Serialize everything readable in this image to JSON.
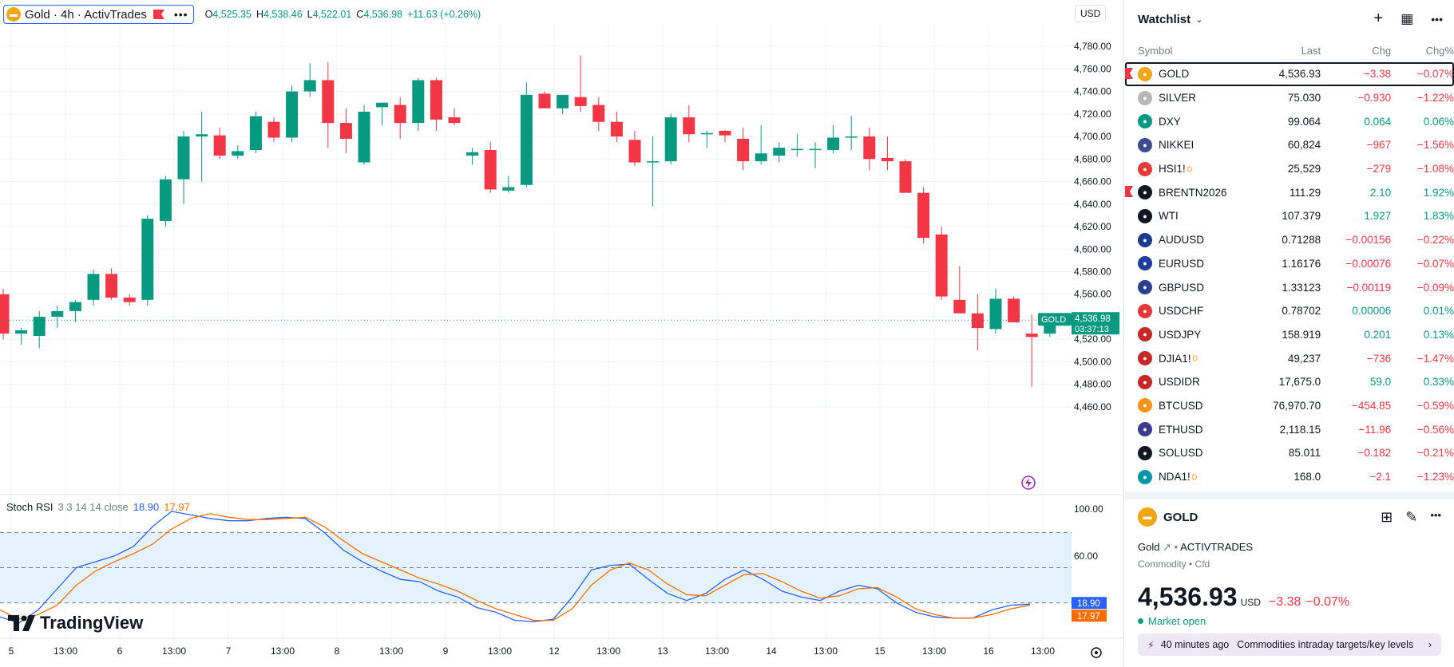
{
  "legend": {
    "symbol_title": "Gold · 4h · ActivTrades",
    "icon": "gold-bars-icon",
    "ohlc": [
      {
        "label": "O",
        "value": "4,525.35"
      },
      {
        "label": "H",
        "value": "4,538.46"
      },
      {
        "label": "L",
        "value": "4,522.01"
      },
      {
        "label": "C",
        "value": "4,536.98"
      }
    ],
    "change": "+11.63 (+0.26%)"
  },
  "currency_button": "USD",
  "price_axis": {
    "labels": [
      "4,780.00",
      "4,760.00",
      "4,740.00",
      "4,720.00",
      "4,700.00",
      "4,680.00",
      "4,660.00",
      "4,640.00",
      "4,620.00",
      "4,600.00",
      "4,580.00",
      "4,560.00",
      "4,540.00",
      "4,520.00",
      "4,500.00",
      "4,480.00",
      "4,460.00"
    ],
    "last_price_tag": {
      "symbol": "GOLD",
      "price": "4,536.98",
      "countdown": "03:37:13"
    }
  },
  "time_axis": [
    "5",
    "13:00",
    "6",
    "13:00",
    "7",
    "13:00",
    "8",
    "13:00",
    "9",
    "13:00",
    "12",
    "13:00",
    "13",
    "13:00",
    "14",
    "13:00",
    "15",
    "13:00",
    "16",
    "13:00"
  ],
  "stoch_rsi": {
    "name": "Stoch RSI",
    "params": "3 3 14 14 close",
    "k_value": "18.90",
    "d_value": "17.97",
    "axis_labels": [
      "100.00",
      "60.00"
    ]
  },
  "brand": "TradingView",
  "chart_data": {
    "type": "candlestick",
    "interval": "4h",
    "ylim": [
      4455,
      4790
    ],
    "candles": [
      {
        "o": 4560,
        "h": 4565,
        "l": 4520,
        "c": 4525
      },
      {
        "o": 4525,
        "h": 4530,
        "l": 4515,
        "c": 4528
      },
      {
        "o": 4523,
        "h": 4545,
        "l": 4512,
        "c": 4540
      },
      {
        "o": 4540,
        "h": 4550,
        "l": 4530,
        "c": 4545
      },
      {
        "o": 4545,
        "h": 4555,
        "l": 4535,
        "c": 4553
      },
      {
        "o": 4555,
        "h": 4582,
        "l": 4550,
        "c": 4578
      },
      {
        "o": 4578,
        "h": 4583,
        "l": 4555,
        "c": 4557
      },
      {
        "o": 4557,
        "h": 4560,
        "l": 4550,
        "c": 4553
      },
      {
        "o": 4555,
        "h": 4630,
        "l": 4550,
        "c": 4627
      },
      {
        "o": 4625,
        "h": 4665,
        "l": 4620,
        "c": 4662
      },
      {
        "o": 4662,
        "h": 4705,
        "l": 4640,
        "c": 4700
      },
      {
        "o": 4700,
        "h": 4722,
        "l": 4660,
        "c": 4702
      },
      {
        "o": 4701,
        "h": 4708,
        "l": 4680,
        "c": 4683
      },
      {
        "o": 4683,
        "h": 4692,
        "l": 4680,
        "c": 4687
      },
      {
        "o": 4688,
        "h": 4722,
        "l": 4685,
        "c": 4718
      },
      {
        "o": 4713,
        "h": 4717,
        "l": 4695,
        "c": 4699
      },
      {
        "o": 4699,
        "h": 4745,
        "l": 4695,
        "c": 4740
      },
      {
        "o": 4740,
        "h": 4765,
        "l": 4735,
        "c": 4750
      },
      {
        "o": 4750,
        "h": 4766,
        "l": 4690,
        "c": 4712
      },
      {
        "o": 4712,
        "h": 4725,
        "l": 4685,
        "c": 4698
      },
      {
        "o": 4677,
        "h": 4728,
        "l": 4675,
        "c": 4722
      },
      {
        "o": 4726,
        "h": 4730,
        "l": 4710,
        "c": 4730
      },
      {
        "o": 4728,
        "h": 4735,
        "l": 4698,
        "c": 4712
      },
      {
        "o": 4712,
        "h": 4752,
        "l": 4705,
        "c": 4750
      },
      {
        "o": 4750,
        "h": 4752,
        "l": 4705,
        "c": 4715
      },
      {
        "o": 4717,
        "h": 4725,
        "l": 4710,
        "c": 4712
      },
      {
        "o": 4683,
        "h": 4690,
        "l": 4675,
        "c": 4686
      },
      {
        "o": 4688,
        "h": 4695,
        "l": 4650,
        "c": 4653
      },
      {
        "o": 4652,
        "h": 4665,
        "l": 4650,
        "c": 4655
      },
      {
        "o": 4657,
        "h": 4748,
        "l": 4655,
        "c": 4737
      },
      {
        "o": 4738,
        "h": 4740,
        "l": 4725,
        "c": 4725
      },
      {
        "o": 4725,
        "h": 4735,
        "l": 4720,
        "c": 4737
      },
      {
        "o": 4735,
        "h": 4772,
        "l": 4722,
        "c": 4727
      },
      {
        "o": 4728,
        "h": 4735,
        "l": 4705,
        "c": 4713
      },
      {
        "o": 4713,
        "h": 4722,
        "l": 4695,
        "c": 4700
      },
      {
        "o": 4697,
        "h": 4705,
        "l": 4674,
        "c": 4677
      },
      {
        "o": 4677,
        "h": 4700,
        "l": 4638,
        "c": 4678
      },
      {
        "o": 4678,
        "h": 4720,
        "l": 4675,
        "c": 4717
      },
      {
        "o": 4717,
        "h": 4728,
        "l": 4695,
        "c": 4702
      },
      {
        "o": 4702,
        "h": 4705,
        "l": 4690,
        "c": 4703
      },
      {
        "o": 4705,
        "h": 4706,
        "l": 4695,
        "c": 4701
      },
      {
        "o": 4698,
        "h": 4708,
        "l": 4670,
        "c": 4678
      },
      {
        "o": 4678,
        "h": 4710,
        "l": 4675,
        "c": 4685
      },
      {
        "o": 4683,
        "h": 4695,
        "l": 4677,
        "c": 4690
      },
      {
        "o": 4688,
        "h": 4702,
        "l": 4682,
        "c": 4689
      },
      {
        "o": 4689,
        "h": 4695,
        "l": 4672,
        "c": 4689
      },
      {
        "o": 4688,
        "h": 4710,
        "l": 4685,
        "c": 4699
      },
      {
        "o": 4700,
        "h": 4718,
        "l": 4688,
        "c": 4700
      },
      {
        "o": 4700,
        "h": 4708,
        "l": 4670,
        "c": 4680
      },
      {
        "o": 4681,
        "h": 4700,
        "l": 4670,
        "c": 4678
      },
      {
        "o": 4678,
        "h": 4680,
        "l": 4650,
        "c": 4650
      },
      {
        "o": 4650,
        "h": 4655,
        "l": 4605,
        "c": 4610
      },
      {
        "o": 4613,
        "h": 4620,
        "l": 4555,
        "c": 4558
      },
      {
        "o": 4555,
        "h": 4585,
        "l": 4545,
        "c": 4543
      },
      {
        "o": 4543,
        "h": 4560,
        "l": 4510,
        "c": 4530
      },
      {
        "o": 4529,
        "h": 4565,
        "l": 4525,
        "c": 4556
      },
      {
        "o": 4556,
        "h": 4558,
        "l": 4535,
        "c": 4535
      },
      {
        "o": 4525,
        "h": 4542,
        "l": 4478,
        "c": 4522
      },
      {
        "o": 4525,
        "h": 4538,
        "l": 4522,
        "c": 4537
      }
    ],
    "stoch_k": [
      8,
      3,
      14,
      32,
      50,
      55,
      60,
      68,
      85,
      98,
      95,
      92,
      90,
      90,
      92,
      93,
      92,
      80,
      65,
      55,
      47,
      40,
      38,
      30,
      25,
      16,
      12,
      5,
      4,
      6,
      25,
      48,
      52,
      53,
      40,
      28,
      22,
      28,
      40,
      48,
      40,
      30,
      25,
      22,
      30,
      35,
      32,
      20,
      12,
      8,
      7,
      7,
      14,
      18,
      18.9
    ],
    "stoch_d": [
      14,
      6,
      10,
      18,
      35,
      47,
      55,
      62,
      70,
      83,
      92,
      96,
      93,
      91,
      91,
      92,
      93,
      85,
      73,
      62,
      55,
      48,
      41,
      36,
      30,
      22,
      15,
      10,
      5,
      5,
      15,
      35,
      48,
      54,
      48,
      36,
      27,
      26,
      35,
      44,
      45,
      38,
      30,
      24,
      26,
      32,
      33,
      25,
      15,
      10,
      7,
      7,
      10,
      15,
      17.97
    ]
  },
  "watchlist": {
    "title": "Watchlist",
    "columns": {
      "symbol": "Symbol",
      "last": "Last",
      "chg": "Chg",
      "chgp": "Chg%"
    },
    "rows": [
      {
        "sym": "GOLD",
        "last": "4,536.93",
        "chg": "−3.38",
        "chgp": "−0.07%",
        "dir": "neg",
        "icon": "gold-bars-icon",
        "color": "#f0a713",
        "flag": true,
        "badge": ""
      },
      {
        "sym": "SILVER",
        "last": "75.030",
        "chg": "−0.930",
        "chgp": "−1.22%",
        "dir": "neg",
        "icon": "silver-bars-icon",
        "color": "#b7b7b7",
        "flag": false,
        "badge": ""
      },
      {
        "sym": "DXY",
        "last": "99.064",
        "chg": "0.064",
        "chgp": "0.06%",
        "dir": "pos",
        "icon": "dollar-icon",
        "color": "#089981",
        "flag": false,
        "badge": ""
      },
      {
        "sym": "NIKKEI",
        "last": "60,824",
        "chg": "−967",
        "chgp": "−1.56%",
        "dir": "neg",
        "icon": "nikkei-225-icon",
        "color": "#3b4c8f",
        "flag": false,
        "badge": ""
      },
      {
        "sym": "HSI1!",
        "last": "25,529",
        "chg": "−279",
        "chgp": "−1.08%",
        "dir": "neg",
        "icon": "hsi-icon",
        "color": "#e53935",
        "flag": false,
        "badge": "D"
      },
      {
        "sym": "BRENTN2026",
        "last": "111.29",
        "chg": "2.10",
        "chgp": "1.92%",
        "dir": "pos",
        "icon": "oil-drop-icon",
        "color": "#131722",
        "flag": true,
        "badge": ""
      },
      {
        "sym": "WTI",
        "last": "107.379",
        "chg": "1.927",
        "chgp": "1.83%",
        "dir": "pos",
        "icon": "oil-drop-icon",
        "color": "#131722",
        "flag": false,
        "badge": ""
      },
      {
        "sym": "AUDUSD",
        "last": "0.71288",
        "chg": "−0.00156",
        "chgp": "−0.22%",
        "dir": "neg",
        "icon": "aud-flag-icon",
        "color": "#1a3a8f",
        "flag": false,
        "badge": ""
      },
      {
        "sym": "EURUSD",
        "last": "1.16176",
        "chg": "−0.00076",
        "chgp": "−0.07%",
        "dir": "neg",
        "icon": "eur-flag-icon",
        "color": "#1e3f9c",
        "flag": false,
        "badge": ""
      },
      {
        "sym": "GBPUSD",
        "last": "1.33123",
        "chg": "−0.00119",
        "chgp": "−0.09%",
        "dir": "neg",
        "icon": "gbp-flag-icon",
        "color": "#2c3f8f",
        "flag": false,
        "badge": ""
      },
      {
        "sym": "USDCHF",
        "last": "0.78702",
        "chg": "0.00006",
        "chgp": "0.01%",
        "dir": "pos",
        "icon": "chf-flag-icon",
        "color": "#e53935",
        "flag": false,
        "badge": ""
      },
      {
        "sym": "USDJPY",
        "last": "158.919",
        "chg": "0.201",
        "chgp": "0.13%",
        "dir": "pos",
        "icon": "usd-flag-icon",
        "color": "#c62828",
        "flag": false,
        "badge": ""
      },
      {
        "sym": "DJIA1!",
        "last": "49,237",
        "chg": "−736",
        "chgp": "−1.47%",
        "dir": "neg",
        "icon": "usd-flag-icon",
        "color": "#c62828",
        "flag": false,
        "badge": "D"
      },
      {
        "sym": "USDIDR",
        "last": "17,675.0",
        "chg": "59.0",
        "chgp": "0.33%",
        "dir": "pos",
        "icon": "usd-flag-icon",
        "color": "#c62828",
        "flag": false,
        "badge": ""
      },
      {
        "sym": "BTCUSD",
        "last": "76,970.70",
        "chg": "−454.85",
        "chgp": "−0.59%",
        "dir": "neg",
        "icon": "bitcoin-icon",
        "color": "#f7931a",
        "flag": false,
        "badge": ""
      },
      {
        "sym": "ETHUSD",
        "last": "2,118.15",
        "chg": "−11.96",
        "chgp": "−0.56%",
        "dir": "neg",
        "icon": "ethereum-icon",
        "color": "#3c3c8d",
        "flag": false,
        "badge": ""
      },
      {
        "sym": "SOLUSD",
        "last": "85.011",
        "chg": "−0.182",
        "chgp": "−0.21%",
        "dir": "neg",
        "icon": "solana-icon",
        "color": "#131722",
        "flag": false,
        "badge": ""
      },
      {
        "sym": "NDA1!",
        "last": "168.0",
        "chg": "−2.1",
        "chgp": "−1.23%",
        "dir": "neg",
        "icon": "index-100-icon",
        "color": "#0097a7",
        "flag": false,
        "badge": "D"
      }
    ]
  },
  "details": {
    "symbol": "GOLD",
    "name": "Gold",
    "exchange": "ACTIVTRADES",
    "type": "Commodity • Cfd",
    "price": "4,536.93",
    "currency": "USD",
    "change": "−3.38",
    "change_pct": "−0.07%",
    "market_status": "Market open",
    "news_age": "40 minutes ago",
    "news_text": "Commodities intraday targets/key levels"
  },
  "colors": {
    "up": "#089981",
    "down": "#f23645",
    "k_line": "#2962ff",
    "d_line": "#ff6d00",
    "band": "#e3f2fd"
  }
}
